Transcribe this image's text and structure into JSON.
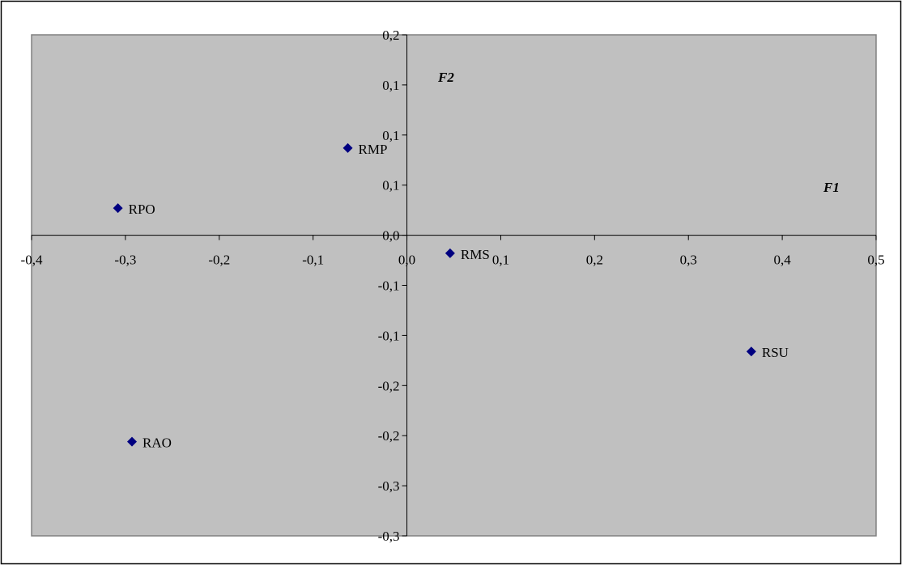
{
  "chart_data": {
    "type": "scatter",
    "title": "",
    "xlabel": "F1",
    "ylabel": "F2",
    "xlim": [
      -0.4,
      0.5
    ],
    "ylim": [
      -0.3,
      0.2
    ],
    "grid": false,
    "legend": "none",
    "x_tick_values": [
      -0.4,
      -0.3,
      -0.2,
      -0.1,
      0.0,
      0.1,
      0.2,
      0.3,
      0.4,
      0.5
    ],
    "x_tick_labels": [
      "-0,4",
      "-0,3",
      "-0,2",
      "-0,1",
      "0,0",
      "0,1",
      "0,2",
      "0,3",
      "0,4",
      "0,5"
    ],
    "y_tick_values": [
      0.2,
      0.15,
      0.1,
      0.05,
      0.0,
      -0.05,
      -0.1,
      -0.15,
      -0.2,
      -0.25,
      -0.3
    ],
    "y_tick_labels": [
      "0,2",
      "0,1",
      "0,1",
      "0,1",
      "0,0",
      "-0,1",
      "-0,1",
      "-0,2",
      "-0,2",
      "-0,3",
      "-0,3"
    ],
    "points": [
      {
        "label": "RMP",
        "x": -0.063,
        "y": 0.087
      },
      {
        "label": "RPO",
        "x": -0.308,
        "y": 0.027
      },
      {
        "label": "RMS",
        "x": 0.046,
        "y": -0.018
      },
      {
        "label": "RSU",
        "x": 0.367,
        "y": -0.116
      },
      {
        "label": "RAO",
        "x": -0.293,
        "y": -0.206
      }
    ],
    "colors": {
      "plot_background": "#c0c0c0",
      "plot_border": "#808080",
      "marker": "#000080",
      "axis": "#000000",
      "frame_border": "#000000"
    }
  }
}
